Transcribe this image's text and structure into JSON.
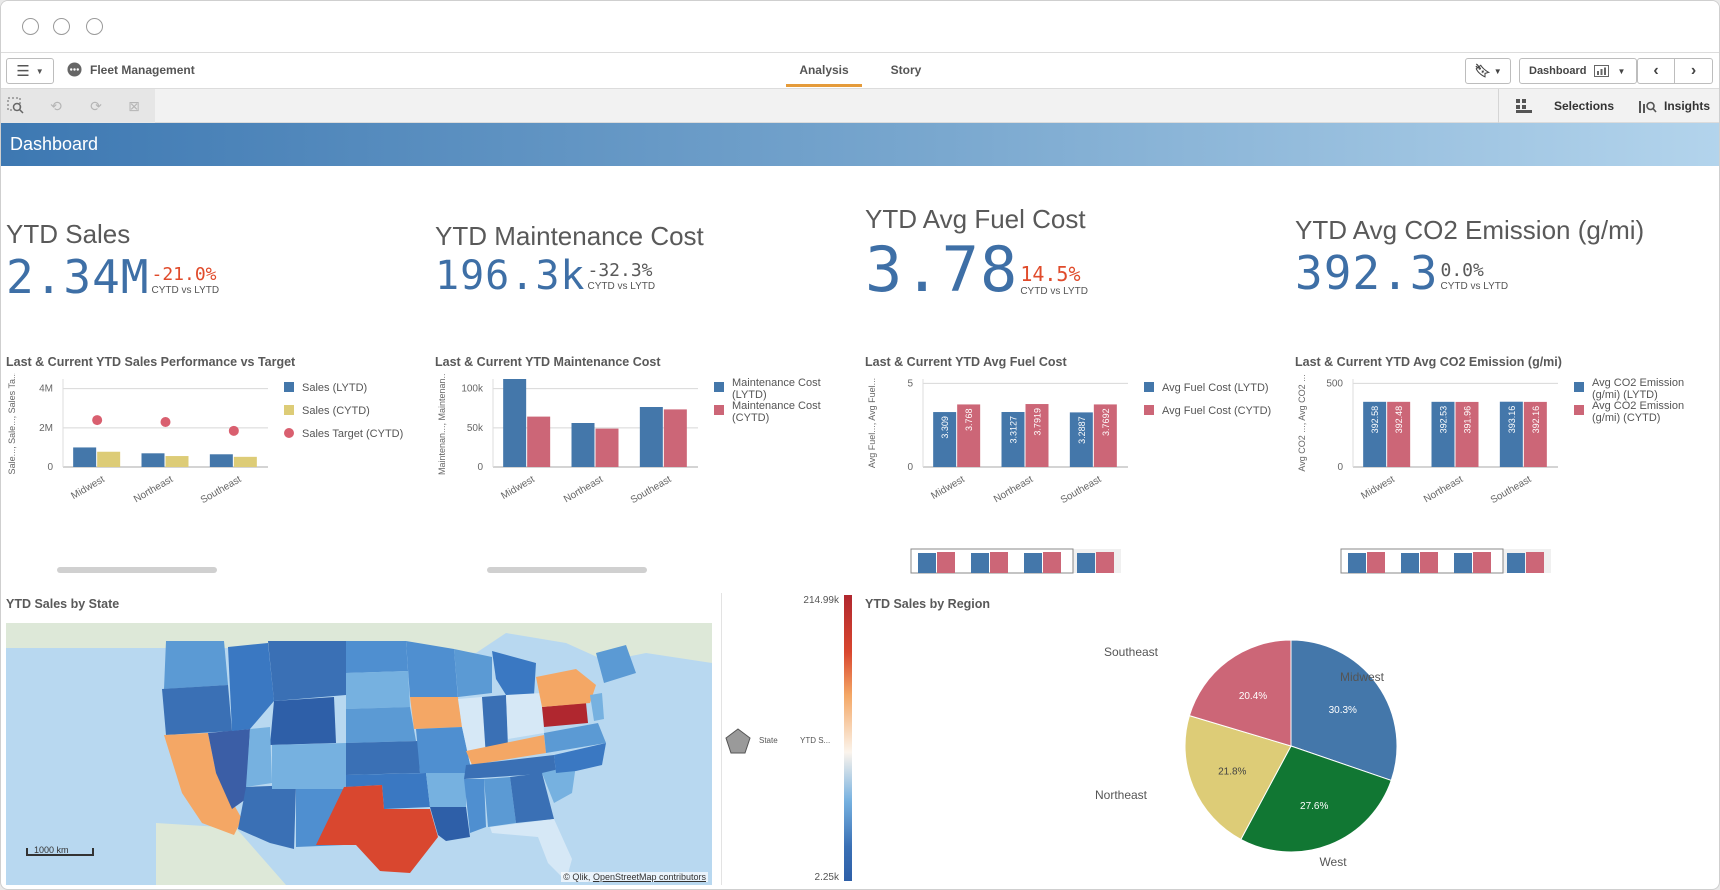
{
  "app": {
    "name": "Fleet Management"
  },
  "tabs": [
    {
      "label": "Analysis",
      "active": true
    },
    {
      "label": "Story",
      "active": false
    }
  ],
  "header_right": {
    "sheet_label": "Dashboard"
  },
  "toolbar": {
    "selections_label": "Selections",
    "insights_label": "Insights"
  },
  "sheet": {
    "title": "Dashboard"
  },
  "kpis": [
    {
      "title": "YTD Sales",
      "value": "2.34M",
      "delta": "-21.0%",
      "delta_color": "#e04b2b",
      "sub": "CYTD vs LYTD"
    },
    {
      "title": "YTD Maintenance Cost",
      "value": "196.3k",
      "delta": "-32.3%",
      "delta_color": "#595959",
      "sub": "CYTD vs LYTD"
    },
    {
      "title": "YTD Avg Fuel Cost",
      "value": "3.78",
      "delta": "14.5%",
      "delta_color": "#e04b2b",
      "sub": "CYTD vs LYTD"
    },
    {
      "title": "YTD Avg CO2 Emission (g/mi)",
      "value": "392.3",
      "delta": "0.0%",
      "delta_color": "#595959",
      "sub": "CYTD vs LYTD"
    }
  ],
  "colors": {
    "blue": "#4477aa",
    "red": "#cc6677",
    "yellow": "#ddcc77",
    "green": "#117733",
    "target": "#d95f6f"
  },
  "chart_data": [
    {
      "type": "bar",
      "title": "Last & Current YTD Sales Performance vs Target",
      "ylabel": "Sale..., Sale..., Sales Ta...",
      "categories": [
        "Midwest",
        "Northeast",
        "Southeast"
      ],
      "ylim": [
        0,
        4500000
      ],
      "ytick_labels": [
        "4M",
        "2M",
        "0"
      ],
      "series": [
        {
          "name": "Sales (LYTD)",
          "values": [
            1000000,
            700000,
            650000
          ]
        },
        {
          "name": "Sales (CYTD)",
          "values": [
            780000,
            560000,
            520000
          ]
        },
        {
          "name": "Sales Target (CYTD)",
          "values": [
            2400000,
            2300000,
            1850000
          ],
          "mark": "dot"
        }
      ]
    },
    {
      "type": "bar",
      "title": "Last & Current YTD Maintenance Cost",
      "ylabel": "Maintenan..., Maintenan...",
      "categories": [
        "Midwest",
        "Northeast",
        "Southeast"
      ],
      "ylim": [
        0,
        110000
      ],
      "ytick_labels": [
        "100k",
        "50k",
        "0"
      ],
      "series": [
        {
          "name": "Maintenance Cost (LYTD)",
          "values": [
            110000,
            55000,
            75000
          ]
        },
        {
          "name": "Maintenance Cost (CYTD)",
          "values": [
            63000,
            48000,
            72000
          ]
        }
      ]
    },
    {
      "type": "bar",
      "title": "Last & Current YTD Avg Fuel Cost",
      "ylabel": "Avg Fuel..., Avg Fuel...",
      "categories": [
        "Midwest",
        "Northeast",
        "Southeast"
      ],
      "ylim": [
        0,
        5.3
      ],
      "ytick_labels": [
        "5",
        "0"
      ],
      "series": [
        {
          "name": "Avg Fuel Cost (LYTD)",
          "values": [
            3.309,
            3.3127,
            3.2887
          ],
          "labels": [
            "3.309",
            "3.3127",
            "3.2887"
          ]
        },
        {
          "name": "Avg Fuel Cost (CYTD)",
          "values": [
            3.768,
            3.7919,
            3.7692
          ],
          "labels": [
            "3.768",
            "3.7919",
            "3.7692"
          ]
        }
      ]
    },
    {
      "type": "bar",
      "title": "Last & Current YTD Avg CO2 Emission (g/mi)",
      "ylabel": "Avg CO2 ..., Avg CO2 ...",
      "categories": [
        "Midwest",
        "Northeast",
        "Southeast"
      ],
      "ylim": [
        0,
        530
      ],
      "ytick_labels": [
        "500",
        "0"
      ],
      "series": [
        {
          "name": "Avg CO2 Emission (g/mi) (LYTD)",
          "values": [
            392.58,
            392.53,
            393.16
          ],
          "labels": [
            "392.58",
            "392.53",
            "393.16"
          ]
        },
        {
          "name": "Avg CO2 Emission (g/mi) (CYTD)",
          "values": [
            392.48,
            391.96,
            392.16
          ],
          "labels": [
            "392.48",
            "391.96",
            "392.16"
          ]
        }
      ]
    },
    {
      "type": "pie",
      "title": "YTD Sales by Region",
      "categories": [
        "Midwest",
        "West",
        "Northeast",
        "Southeast"
      ],
      "values": [
        30.3,
        27.6,
        21.8,
        20.4
      ],
      "labels": [
        "30.3%",
        "27.6%",
        "21.8%",
        "20.4%"
      ]
    }
  ],
  "map": {
    "title": "YTD Sales by State",
    "scale_label": "1000 km",
    "attribution_prefix": "© Qlik,",
    "attribution_link": "OpenStreetMap contributors",
    "legend_max": "214.99k",
    "legend_min": "2.25k",
    "legend_dimension": "State",
    "legend_measure": "YTD S..."
  }
}
